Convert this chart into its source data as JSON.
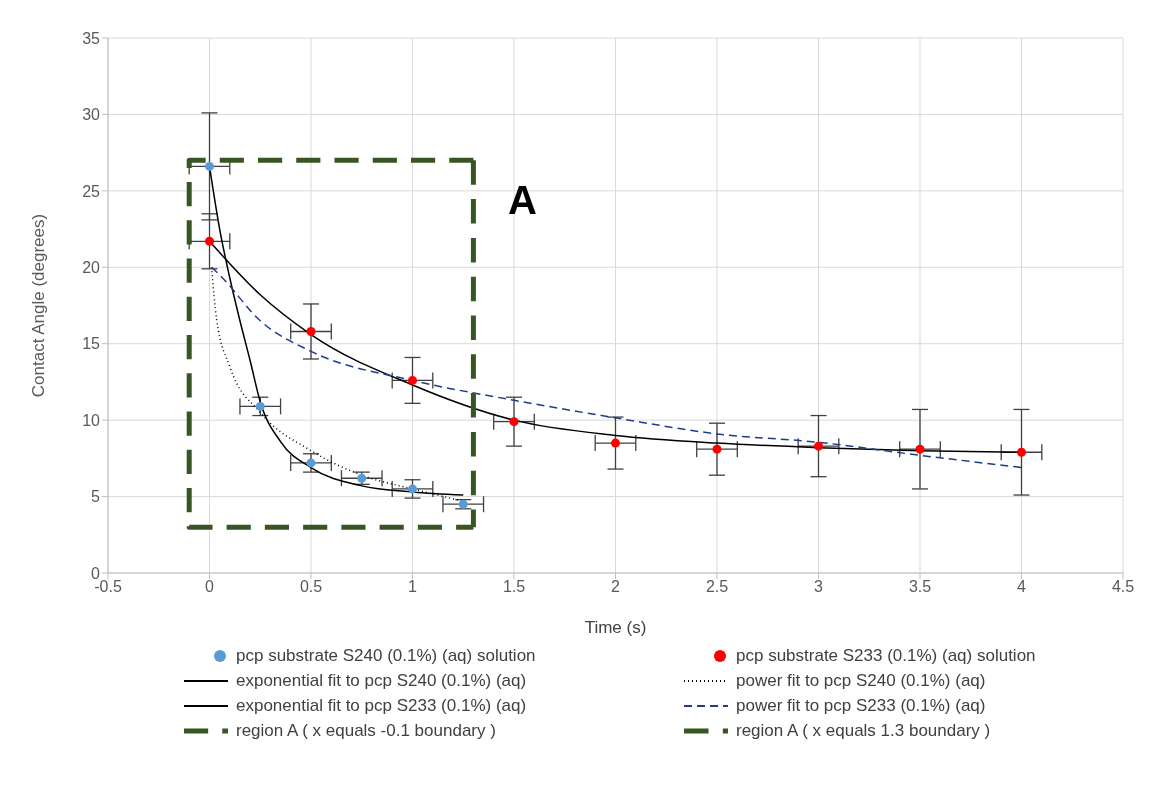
{
  "chart_data": {
    "type": "scatter",
    "xlabel": "Time (s)",
    "ylabel": "Contact Angle (degrees)",
    "xlim": [
      -0.5,
      4.5
    ],
    "xticks": [
      -0.5,
      0,
      0.5,
      1,
      1.5,
      2,
      2.5,
      3,
      3.5,
      4,
      4.5
    ],
    "ylim": [
      0,
      35
    ],
    "yticks": [
      0,
      5,
      10,
      15,
      20,
      25,
      30,
      35
    ],
    "grid": true,
    "legend": "bottom",
    "annotations": [
      "A"
    ],
    "series": [
      {
        "name": "pcp substrate S240 (0.1%) (aq) solution",
        "marker": "circle",
        "color": "#5b9bd5",
        "x": [
          0,
          0.25,
          0.5,
          0.75,
          1,
          1.25
        ],
        "values": [
          26.6,
          10.9,
          7.2,
          6.2,
          5.5,
          4.5
        ],
        "errors": [
          3.5,
          0.6,
          0.6,
          0.4,
          0.6,
          0.3
        ],
        "xerrors": [
          0.1,
          0.1,
          0.1,
          0.1,
          0.1,
          0.1
        ]
      },
      {
        "name": "pcp substrate S233 (0.1%) (aq) solution",
        "marker": "circle",
        "color": "#ff0000",
        "x": [
          0,
          0.5,
          1,
          1.5,
          2,
          2.5,
          3,
          3.5,
          4
        ],
        "values": [
          21.7,
          15.8,
          12.6,
          9.9,
          8.5,
          8.1,
          8.3,
          8.1,
          7.9
        ],
        "errors": [
          1.8,
          1.8,
          1.5,
          1.6,
          1.7,
          1.7,
          2,
          2.6,
          2.8
        ],
        "xerrors": [
          0.1,
          0.1,
          0.1,
          0.1,
          0.1,
          0.1,
          0.1,
          0.1,
          0.1
        ]
      },
      {
        "name": "exponential fit to pcp S240 (0.1%) (aq)",
        "type": "line",
        "marker": "none",
        "line_style": "solid",
        "color": "#000000",
        "x": [
          0,
          0.05,
          0.1,
          0.15,
          0.2,
          0.25,
          0.35,
          0.5,
          0.75,
          1,
          1.25
        ],
        "values": [
          26.6,
          22.5,
          19.3,
          16.5,
          13.9,
          11.2,
          8.6,
          6.9,
          5.7,
          5.3,
          5.1
        ]
      },
      {
        "name": "power fit to pcp S240 (0.1%) (aq)",
        "type": "line",
        "marker": "none",
        "line_style": "dotted",
        "color": "#000000",
        "x": [
          0.01,
          0.035,
          0.1,
          0.25,
          0.5,
          0.75,
          1,
          1.25
        ],
        "values": [
          20,
          16.6,
          13.5,
          10.5,
          8,
          6.4,
          5.5,
          4.7
        ]
      },
      {
        "name": "exponential fit to pcp S233 (0.1%) (aq)",
        "type": "line",
        "marker": "none",
        "line_style": "solid",
        "color": "#000000",
        "x": [
          0,
          0.25,
          0.5,
          1,
          1.5,
          2,
          2.5,
          3,
          3.5,
          4
        ],
        "values": [
          21.7,
          18.2,
          15.6,
          12.3,
          10,
          9,
          8.5,
          8.2,
          8,
          7.9
        ]
      },
      {
        "name": "power fit to pcp S233 (0.1%) (aq)",
        "type": "line",
        "marker": "none",
        "line_style": "dashed",
        "color": "#1f3c88",
        "x": [
          0.01,
          0.05,
          0.25,
          0.5,
          1,
          1.5,
          2,
          2.5,
          3,
          3.5,
          4
        ],
        "values": [
          20,
          19.5,
          16.5,
          14.5,
          12.6,
          11.3,
          10.15,
          9.1,
          8.55,
          7.7,
          6.9
        ]
      },
      {
        "name": "region A ( x equals -0.1 boundary )",
        "type": "line",
        "marker": "none",
        "line_style": "dashed",
        "color": "#375623",
        "x": [
          1.3,
          -0.1,
          -0.1,
          1.3
        ],
        "values": [
          27,
          27,
          3,
          3
        ]
      },
      {
        "name": "region A ( x equals 1.3 boundary )",
        "type": "line",
        "marker": "none",
        "line_style": "dashed",
        "color": "#375623",
        "x": [
          1.3,
          1.3
        ],
        "values": [
          27,
          3
        ]
      }
    ]
  }
}
